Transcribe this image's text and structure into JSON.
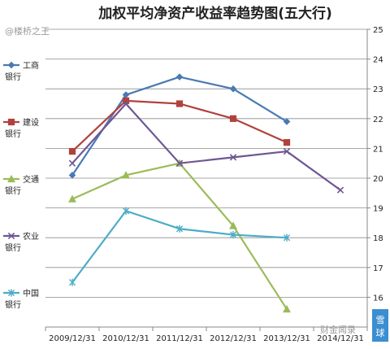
{
  "chart_data": {
    "type": "line",
    "title": "加权平均净资产收益率趋势图(五大行)",
    "xlabel": "",
    "ylabel": "",
    "x": [
      "2009/12/31",
      "2010/12/31",
      "2011/12/31",
      "2012/12/31",
      "2013/12/31",
      "2014/12/31"
    ],
    "ylim": [
      15,
      25
    ],
    "yticks": [
      16,
      17,
      18,
      19,
      20,
      21,
      22,
      23,
      24,
      25
    ],
    "y_axis_side": "right",
    "grid": true,
    "legend_placement": "left",
    "series": [
      {
        "name": "工商银行",
        "color": "#4a7ab2",
        "marker": "diamond",
        "values": [
          20.1,
          22.8,
          23.4,
          23.0,
          21.9,
          null
        ]
      },
      {
        "name": "建设银行",
        "color": "#b2413c",
        "marker": "square",
        "values": [
          20.9,
          22.6,
          22.5,
          22.0,
          21.2,
          null
        ]
      },
      {
        "name": "交通银行",
        "color": "#9bbb59",
        "marker": "triangle",
        "values": [
          19.3,
          20.1,
          20.5,
          18.4,
          15.6,
          null
        ]
      },
      {
        "name": "农业银行",
        "color": "#6e5793",
        "marker": "x",
        "values": [
          20.5,
          22.5,
          20.5,
          20.7,
          20.9,
          19.6
        ]
      },
      {
        "name": "中国银行",
        "color": "#4cacc6",
        "marker": "star",
        "values": [
          16.5,
          18.9,
          18.3,
          18.1,
          18.0,
          null
        ]
      }
    ],
    "legend_labels": [
      [
        "工商",
        "银行"
      ],
      [
        "建设",
        "银行"
      ],
      [
        "交通",
        "银行"
      ],
      [
        "农业",
        "银行"
      ],
      [
        "中国",
        "银行"
      ]
    ]
  },
  "watermarks": {
    "top_left": "@楼桥之王",
    "bottom_right": "财金闻录",
    "corner_logo_char": "雪球"
  }
}
